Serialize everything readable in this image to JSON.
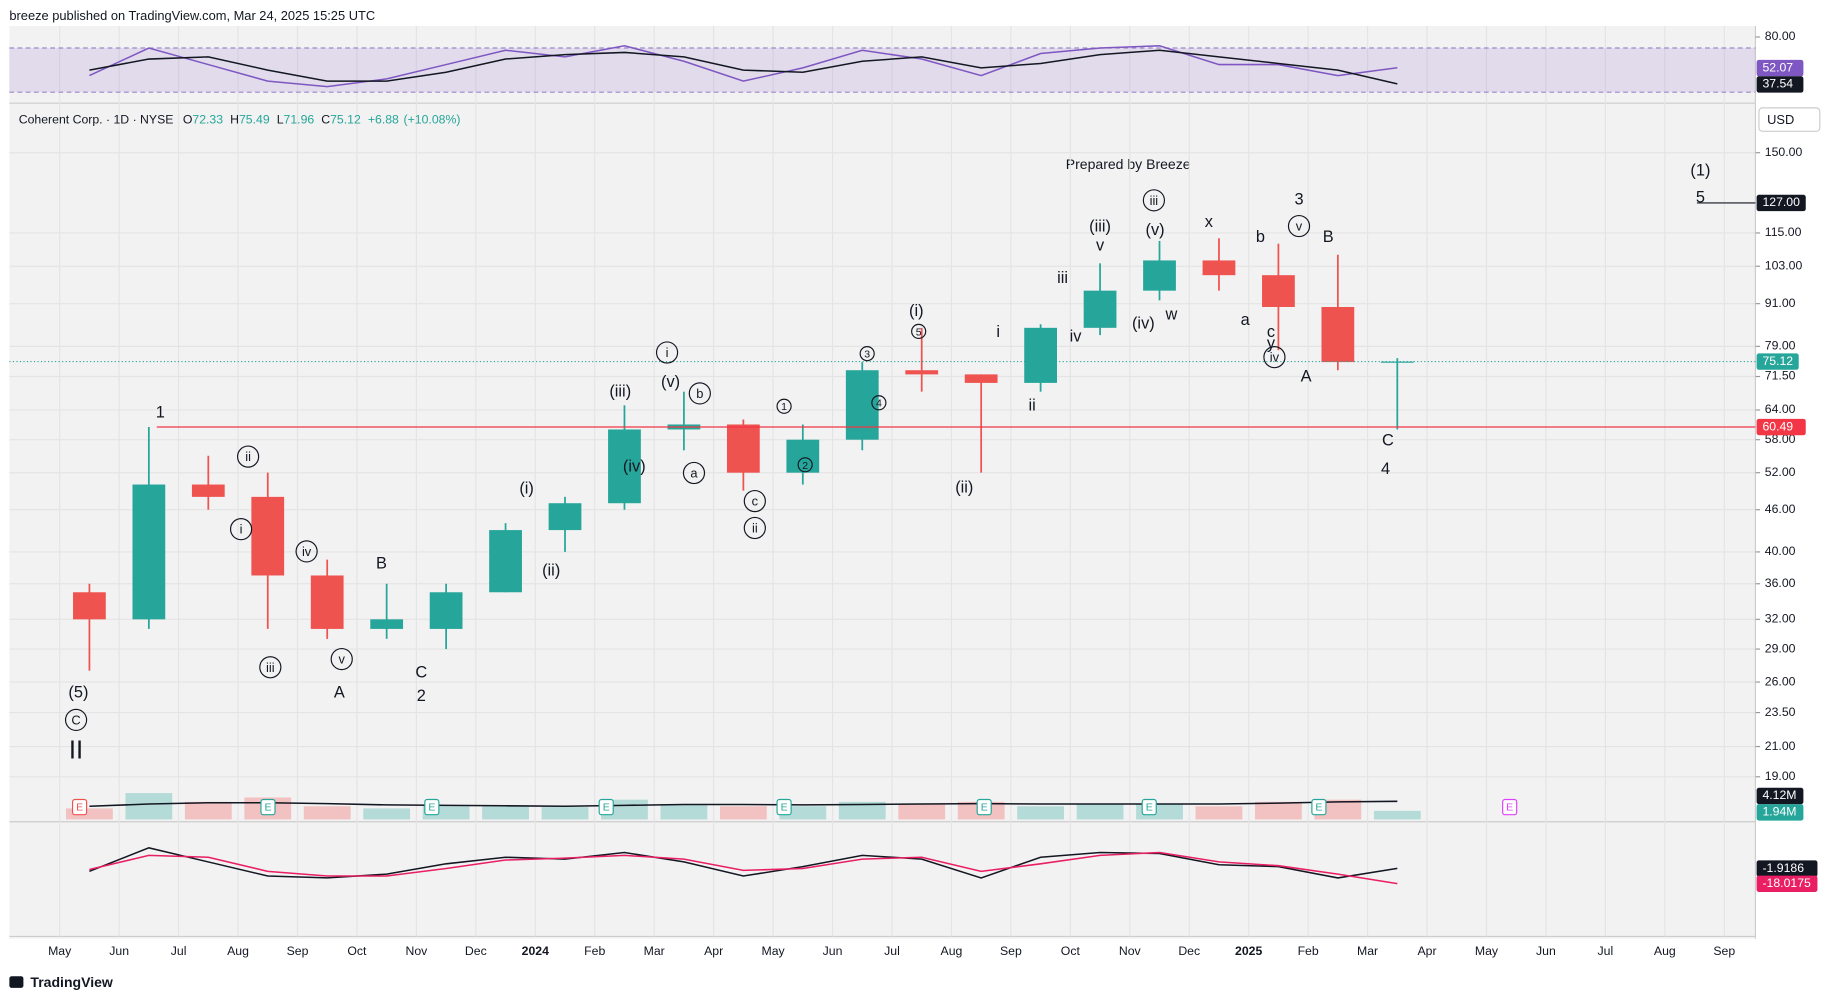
{
  "header": "breeze published on TradingView.com, Mar 24, 2025 15:25 UTC",
  "footer": "TradingView",
  "chart_data": {
    "type": "candlestick",
    "symbol": "Coherent Corp. · 1D · NYSE",
    "currency": "USD",
    "note": "Prepared by Breeze",
    "legend": [
      {
        "key": "O",
        "value": 72.33
      },
      {
        "key": "H",
        "value": 75.49
      },
      {
        "key": "L",
        "value": 71.96
      },
      {
        "key": "C",
        "value": 75.12
      }
    ],
    "change": {
      "value": 6.88,
      "label": "+6.88"
    },
    "change_pct": {
      "value": 10.08,
      "label": "(+10.08%)"
    },
    "categories": [
      "May",
      "Jun",
      "Jul",
      "Aug",
      "Sep",
      "Oct",
      "Nov",
      "Dec",
      "2024",
      "Feb",
      "Mar",
      "Apr",
      "May",
      "Jun",
      "Jul",
      "Aug",
      "Sep",
      "Oct",
      "Nov",
      "Dec",
      "2025",
      "Feb",
      "Mar",
      "Apr",
      "May",
      "Jun",
      "Jul",
      "Aug",
      "Sep"
    ],
    "open": [
      35,
      32,
      50,
      48,
      37,
      31,
      31,
      35,
      43,
      47,
      60,
      61,
      52,
      58,
      73,
      72,
      70,
      84,
      95,
      105,
      100,
      90,
      75,
      null,
      null,
      null,
      null,
      null,
      null
    ],
    "high": [
      36,
      60.5,
      55,
      52,
      39,
      36,
      36,
      44,
      48,
      65,
      68,
      62,
      61,
      75,
      84,
      72,
      85,
      104,
      112,
      113,
      111,
      107,
      76,
      null,
      null,
      null,
      null,
      null,
      null
    ],
    "low": [
      27,
      31,
      46,
      31,
      30,
      30,
      29,
      35,
      40,
      46,
      56,
      49,
      50,
      56,
      68,
      52,
      68,
      82,
      92,
      95,
      78,
      73,
      60,
      null,
      null,
      null,
      null,
      null,
      null
    ],
    "close": [
      32,
      50,
      48,
      37,
      31,
      32,
      35,
      43,
      47,
      60,
      61,
      52,
      58,
      73,
      72,
      70,
      84,
      95,
      105,
      100,
      90,
      75,
      75.12,
      null,
      null,
      null,
      null,
      null,
      null
    ],
    "up_color": "#26a69a",
    "down_color": "#ef5350",
    "log_scale": true,
    "grid": true,
    "ylim": [
      16.5,
      174
    ],
    "yticks": [
      {
        "value": 19,
        "label": "19.00"
      },
      {
        "value": 21,
        "label": "21.00"
      },
      {
        "value": 23.5,
        "label": "23.50"
      },
      {
        "value": 26,
        "label": "26.00"
      },
      {
        "value": 29,
        "label": "29.00"
      },
      {
        "value": 32,
        "label": "32.00"
      },
      {
        "value": 36,
        "label": "36.00"
      },
      {
        "value": 40,
        "label": "40.00"
      },
      {
        "value": 46,
        "label": "46.00"
      },
      {
        "value": 52,
        "label": "52.00"
      },
      {
        "value": 58,
        "label": "58.00"
      },
      {
        "value": 64,
        "label": "64.00"
      },
      {
        "value": 71.5,
        "label": "71.50"
      },
      {
        "value": 79,
        "label": "79.00"
      },
      {
        "value": 91,
        "label": "91.00"
      },
      {
        "value": 103,
        "label": "103.00"
      },
      {
        "value": 115,
        "label": "115.00"
      },
      {
        "value": 150,
        "label": "150.00"
      }
    ],
    "hlines": [
      {
        "value": 60.49,
        "label": "60.49",
        "color": "#f23645"
      },
      {
        "value": 127,
        "label": "127.00",
        "color": "#131722"
      }
    ],
    "annotations": [
      {
        "text": "(5)",
        "circled": false
      },
      {
        "text": "C",
        "circled": true
      },
      {
        "text": "II",
        "circled": false
      },
      {
        "text": "1",
        "circled": false
      },
      {
        "text": "ii",
        "circled": true
      },
      {
        "text": "i",
        "circled": true
      },
      {
        "text": "iv",
        "circled": true
      },
      {
        "text": "iii",
        "circled": true
      },
      {
        "text": "v",
        "circled": true
      },
      {
        "text": "A",
        "circled": false
      },
      {
        "text": "B",
        "circled": false
      },
      {
        "text": "C",
        "circled": false
      },
      {
        "text": "2",
        "circled": false
      },
      {
        "text": "(i)",
        "circled": false
      },
      {
        "text": "(ii)",
        "circled": false
      },
      {
        "text": "(iii)",
        "circled": false
      },
      {
        "text": "(iv)",
        "circled": false
      },
      {
        "text": "i",
        "circled": true
      },
      {
        "text": "(v)",
        "circled": false
      },
      {
        "text": "b",
        "circled": true
      },
      {
        "text": "a",
        "circled": true
      },
      {
        "text": "c",
        "circled": true
      },
      {
        "text": "ii",
        "circled": true
      },
      {
        "text": "1",
        "circled": true
      },
      {
        "text": "2",
        "circled": true
      },
      {
        "text": "3",
        "circled": true
      },
      {
        "text": "4",
        "circled": true
      },
      {
        "text": "5",
        "circled": true
      },
      {
        "text": "(i)",
        "circled": false
      },
      {
        "text": "(ii)",
        "circled": false
      },
      {
        "text": "i",
        "circled": false
      },
      {
        "text": "ii",
        "circled": false
      },
      {
        "text": "iii",
        "circled": false
      },
      {
        "text": "iv",
        "circled": false
      },
      {
        "text": "(iii)",
        "circled": false
      },
      {
        "text": "v",
        "circled": false
      },
      {
        "text": "iii",
        "circled": true
      },
      {
        "text": "(v)",
        "circled": false
      },
      {
        "text": "(iv)",
        "circled": false
      },
      {
        "text": "w",
        "circled": false
      },
      {
        "text": "x",
        "circled": false
      },
      {
        "text": "b",
        "circled": false
      },
      {
        "text": "a",
        "circled": false
      },
      {
        "text": "c",
        "circled": false
      },
      {
        "text": "y",
        "circled": false
      },
      {
        "text": "iv",
        "circled": true
      },
      {
        "text": "3",
        "circled": false
      },
      {
        "text": "v",
        "circled": true
      },
      {
        "text": "B",
        "circled": false
      },
      {
        "text": "A",
        "circled": false
      },
      {
        "text": "C",
        "circled": false
      },
      {
        "text": "4",
        "circled": false
      },
      {
        "text": "(1)",
        "circled": false
      },
      {
        "text": "5",
        "circled": false
      }
    ],
    "earnings_label": "E",
    "volume": {
      "ylim": [
        0,
        12000000
      ],
      "up_color": "#26a69a",
      "down_color": "#ef5350",
      "values": [
        2500000,
        6000000,
        4000000,
        5000000,
        3000000,
        2500000,
        3000000,
        3000000,
        2800000,
        4500000,
        3500000,
        3000000,
        3000000,
        4000000,
        3500000,
        4000000,
        3000000,
        3500000,
        3500000,
        3000000,
        4000000,
        4500000,
        1940000,
        null,
        null,
        null,
        null,
        null,
        null
      ],
      "value_labels": [
        null,
        null,
        null,
        null,
        null,
        null,
        null,
        null,
        null,
        null,
        null,
        null,
        null,
        null,
        null,
        null,
        null,
        null,
        null,
        null,
        null,
        null,
        "1.94M",
        null,
        null,
        null,
        null,
        null,
        null
      ],
      "ma": [
        3000000,
        3500000,
        3800000,
        3800000,
        3600000,
        3300000,
        3200000,
        3100000,
        3000000,
        3200000,
        3400000,
        3400000,
        3300000,
        3400000,
        3500000,
        3600000,
        3500000,
        3500000,
        3500000,
        3500000,
        3700000,
        4000000,
        4120000,
        null,
        null,
        null,
        null,
        null,
        null
      ],
      "ma_labels": [
        null,
        null,
        null,
        null,
        null,
        null,
        null,
        null,
        null,
        null,
        null,
        null,
        null,
        null,
        null,
        null,
        null,
        null,
        null,
        null,
        null,
        null,
        "4.12M",
        null,
        null,
        null,
        null,
        null,
        null
      ]
    },
    "rsi": {
      "ylim": [
        20,
        90
      ],
      "yticks": [
        {
          "value": 80,
          "label": "80.00"
        }
      ],
      "band": [
        30,
        70
      ],
      "series": [
        {
          "color": "#7e57c2",
          "values": [
            45,
            70,
            55,
            40,
            35,
            42,
            55,
            68,
            62,
            72,
            58,
            40,
            52,
            68,
            60,
            45,
            65,
            70,
            72,
            55,
            55,
            45,
            52.07,
            null,
            null,
            null,
            null,
            null,
            null
          ]
        },
        {
          "color": "#131722",
          "values": [
            50,
            60,
            62,
            50,
            40,
            40,
            48,
            60,
            64,
            66,
            62,
            50,
            48,
            58,
            62,
            52,
            56,
            64,
            68,
            62,
            56,
            50,
            37.54,
            null,
            null,
            null,
            null,
            null,
            null
          ]
        }
      ]
    },
    "macd": {
      "ylim": [
        -68,
        44
      ],
      "series": [
        {
          "color": "#131722",
          "values": [
            -5,
            20,
            5,
            -10,
            -12,
            -8,
            3,
            10,
            8,
            15,
            5,
            -10,
            0,
            12,
            8,
            -12,
            10,
            15,
            14,
            2,
            0,
            -12,
            -1.9186,
            null,
            null,
            null,
            null,
            null,
            null
          ]
        },
        {
          "color": "#e91e63",
          "values": [
            -3,
            12,
            10,
            -5,
            -10,
            -10,
            -2,
            7,
            9,
            12,
            8,
            -4,
            -2,
            8,
            10,
            -5,
            3,
            12,
            15,
            5,
            1,
            -8,
            -18.0175,
            null,
            null,
            null,
            null,
            null,
            null
          ]
        }
      ]
    }
  }
}
